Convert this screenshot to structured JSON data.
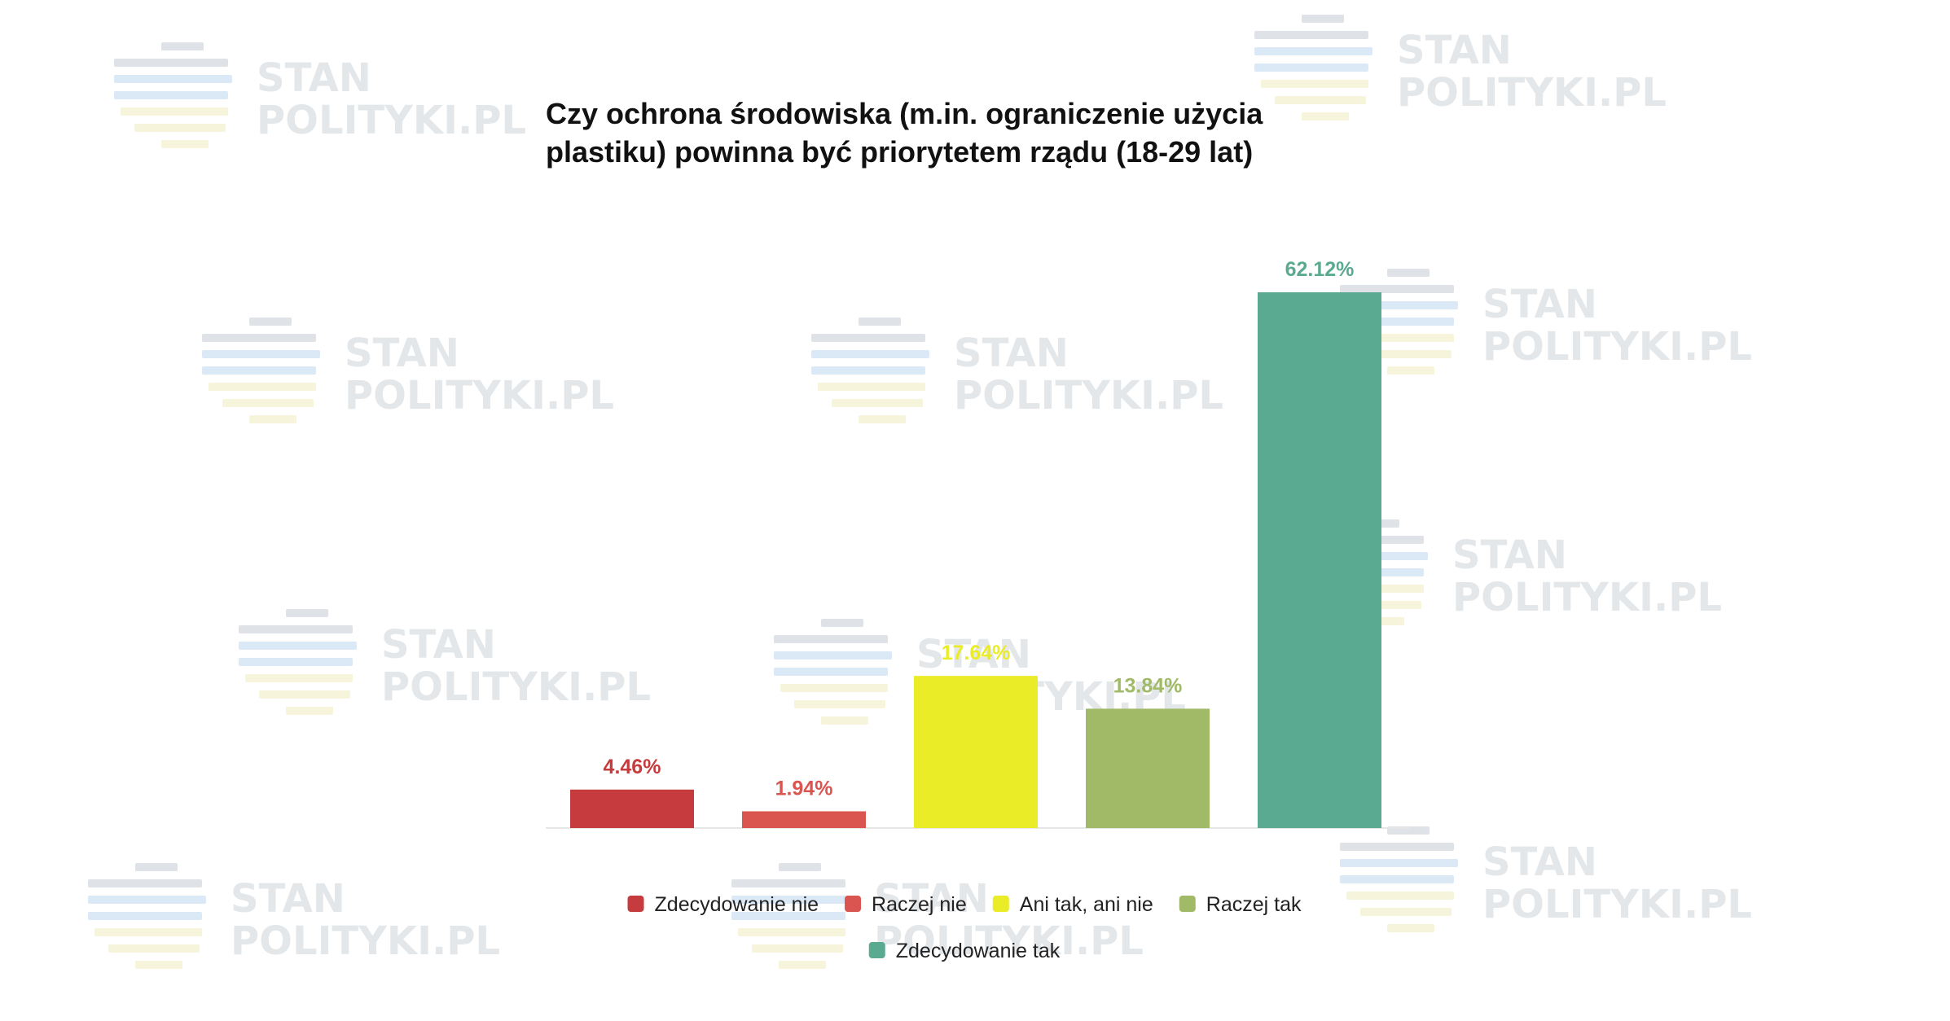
{
  "watermark": {
    "line1": "STAN",
    "line2": "POLITYKI.PL",
    "colors": {
      "top": "#dfe2e6",
      "middle": "#dbe9f6",
      "bottom": "#f7f4dc"
    }
  },
  "chart_data": {
    "type": "bar",
    "title": "Czy ochrona środowiska (m.in. ograniczenie użycia plastiku) powinna być priorytetem rządu (18-29 lat)",
    "title_lines": [
      "Czy ochrona środowiska (m.in. ograniczenie użycia",
      "plastiku) powinna być priorytetem rządu (18-29 lat)"
    ],
    "xlabel": "",
    "ylabel": "",
    "ylim": [
      0,
      62.12
    ],
    "grid": false,
    "legend_position": "bottom-center",
    "unit": "%",
    "categories": [
      "Zdecydowanie nie",
      "Raczej nie",
      "Ani tak, ani nie",
      "Raczej tak",
      "Zdecydowanie tak"
    ],
    "values": [
      4.46,
      1.94,
      17.64,
      13.84,
      62.12
    ],
    "value_labels": [
      "4.46%",
      "1.94%",
      "17.64%",
      "13.84%",
      "62.12%"
    ],
    "colors": [
      "#c63b3d",
      "#db5550",
      "#e9ec27",
      "#a1ba67",
      "#5aaa91"
    ],
    "label_colors": [
      "#c63b3d",
      "#db5550",
      "#e9ec27",
      "#a1ba67",
      "#5aaa91"
    ],
    "legend": [
      {
        "label": "Zdecydowanie nie",
        "color": "#c63b3d"
      },
      {
        "label": "Raczej nie",
        "color": "#db5550"
      },
      {
        "label": "Ani tak, ani nie",
        "color": "#e9ec27"
      },
      {
        "label": "Raczej tak",
        "color": "#a1ba67"
      },
      {
        "label": "Zdecydowanie tak",
        "color": "#5aaa91"
      }
    ]
  }
}
